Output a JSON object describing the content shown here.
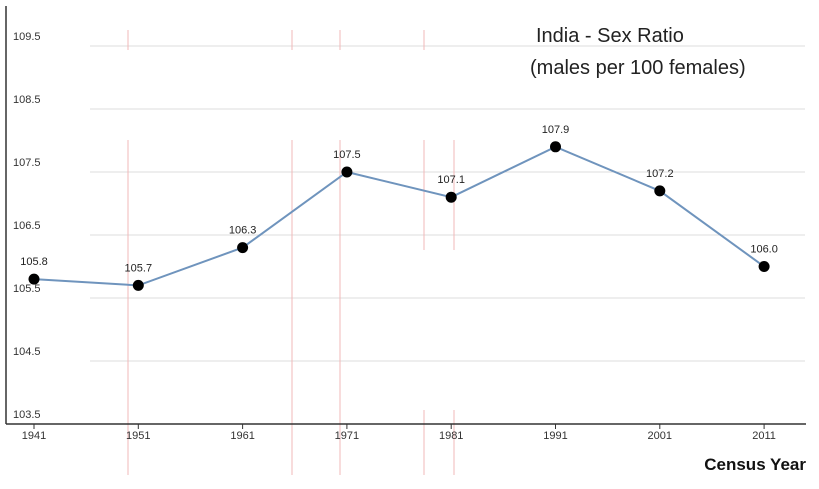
{
  "chart_data": {
    "type": "line",
    "title": "India - Sex Ratio",
    "subtitle": "(males per 100 females)",
    "xlabel": "Census Year",
    "ylabel": "",
    "x": [
      "1941",
      "1951",
      "1961",
      "1971",
      "1981",
      "1991",
      "2001",
      "2011"
    ],
    "series": [
      {
        "values": [
          105.8,
          105.7,
          106.3,
          107.5,
          107.1,
          107.9,
          107.2,
          106.0
        ],
        "labels": [
          "105.8",
          "105.7",
          "106.3",
          "107.5",
          "107.1",
          "107.9",
          "107.2",
          "106.0"
        ]
      }
    ],
    "yticks": [
      "103.5",
      "104.5",
      "105.5",
      "106.5",
      "107.5",
      "108.5",
      "109.5"
    ],
    "ylim": [
      103.5,
      109.5
    ],
    "grid": true,
    "colors": {
      "line": "#6f94bd",
      "marker": "#000000",
      "grid": "#dcdcdc",
      "axis": "#333333"
    }
  }
}
